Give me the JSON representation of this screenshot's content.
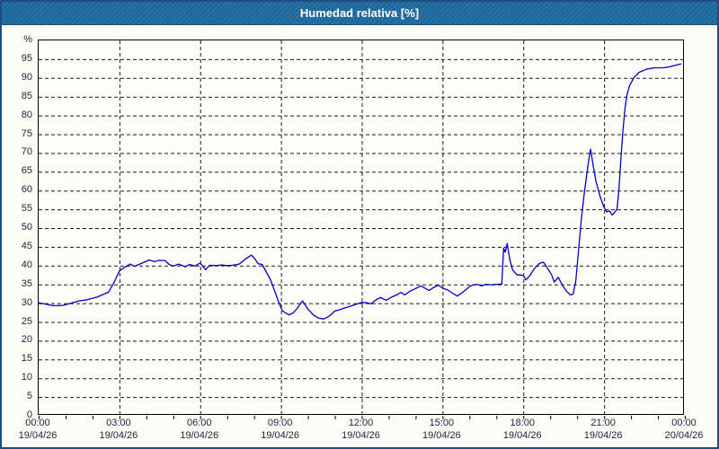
{
  "title": "Humedad relativa [%]",
  "colors": {
    "titlebar_bg": "#1F699E",
    "window_border": "#1D4E7E",
    "background": "#FBFCF4",
    "plot_background": "#FDFEF8",
    "grid": "#1A1A1A",
    "axis": "#000000",
    "tick_label": "#1A2640",
    "line": "#0000C8"
  },
  "y_axis": {
    "unit": "%",
    "ticks": [
      95,
      90,
      85,
      80,
      75,
      70,
      65,
      60,
      55,
      50,
      45,
      40,
      35,
      30,
      25,
      20,
      15,
      10,
      5,
      0
    ]
  },
  "x_axis": {
    "ticks": [
      {
        "hour": 0,
        "time": "00:00",
        "date": "19/04/26"
      },
      {
        "hour": 3,
        "time": "03:00",
        "date": "19/04/26"
      },
      {
        "hour": 6,
        "time": "06:00",
        "date": "19/04/26"
      },
      {
        "hour": 9,
        "time": "09:00",
        "date": "19/04/26"
      },
      {
        "hour": 12,
        "time": "12:00",
        "date": "19/04/26"
      },
      {
        "hour": 15,
        "time": "15:00",
        "date": "19/04/26"
      },
      {
        "hour": 18,
        "time": "18:00",
        "date": "19/04/26"
      },
      {
        "hour": 21,
        "time": "21:00",
        "date": "19/04/26"
      },
      {
        "hour": 24,
        "time": "00:00",
        "date": "20/04/26"
      }
    ],
    "minor_tick_every_hours": 1
  },
  "chart_data": {
    "type": "line",
    "title": "Humedad relativa [%]",
    "ylabel": "%",
    "ylim": [
      0,
      100
    ],
    "xlim_hours": [
      0,
      24
    ],
    "grid": "dashed, every 5 % horizontal, every 3 h vertical",
    "legend_position": "none",
    "series": [
      {
        "name": "Humedad relativa",
        "color": "#0000C8",
        "points_time_hours_vs_percent": [
          [
            0.0,
            30.1
          ],
          [
            0.3,
            29.7
          ],
          [
            0.55,
            29.3
          ],
          [
            0.9,
            29.4
          ],
          [
            1.2,
            30.0
          ],
          [
            1.5,
            30.6
          ],
          [
            1.8,
            30.9
          ],
          [
            2.2,
            31.7
          ],
          [
            2.6,
            33.0
          ],
          [
            2.8,
            35.5
          ],
          [
            3.0,
            38.6
          ],
          [
            3.2,
            39.6
          ],
          [
            3.4,
            40.4
          ],
          [
            3.55,
            39.8
          ],
          [
            3.75,
            40.4
          ],
          [
            3.95,
            41.0
          ],
          [
            4.1,
            41.5
          ],
          [
            4.3,
            41.1
          ],
          [
            4.5,
            41.4
          ],
          [
            4.7,
            41.3
          ],
          [
            4.85,
            40.3
          ],
          [
            5.0,
            39.9
          ],
          [
            5.2,
            40.4
          ],
          [
            5.45,
            39.7
          ],
          [
            5.6,
            40.3
          ],
          [
            5.8,
            39.9
          ],
          [
            6.0,
            40.7
          ],
          [
            6.2,
            38.9
          ],
          [
            6.35,
            40.1
          ],
          [
            6.6,
            40.0
          ],
          [
            6.8,
            40.2
          ],
          [
            7.0,
            40.0
          ],
          [
            7.2,
            40.1
          ],
          [
            7.45,
            40.4
          ],
          [
            7.65,
            41.6
          ],
          [
            7.9,
            42.8
          ],
          [
            8.05,
            41.6
          ],
          [
            8.15,
            40.5
          ],
          [
            8.3,
            40.3
          ],
          [
            8.45,
            38.4
          ],
          [
            8.6,
            36.4
          ],
          [
            8.75,
            33.6
          ],
          [
            8.9,
            30.6
          ],
          [
            9.05,
            28.0
          ],
          [
            9.15,
            27.5
          ],
          [
            9.3,
            26.9
          ],
          [
            9.45,
            27.4
          ],
          [
            9.6,
            28.6
          ],
          [
            9.8,
            30.6
          ],
          [
            10.0,
            28.4
          ],
          [
            10.2,
            26.9
          ],
          [
            10.4,
            26.0
          ],
          [
            10.6,
            25.8
          ],
          [
            10.8,
            26.6
          ],
          [
            11.0,
            27.9
          ],
          [
            11.2,
            28.3
          ],
          [
            11.45,
            28.9
          ],
          [
            11.7,
            29.5
          ],
          [
            12.0,
            30.2
          ],
          [
            12.2,
            30.1
          ],
          [
            12.35,
            29.8
          ],
          [
            12.55,
            31.0
          ],
          [
            12.7,
            31.5
          ],
          [
            12.9,
            30.8
          ],
          [
            13.1,
            31.6
          ],
          [
            13.3,
            32.2
          ],
          [
            13.45,
            32.9
          ],
          [
            13.6,
            32.2
          ],
          [
            13.8,
            33.2
          ],
          [
            14.0,
            33.9
          ],
          [
            14.2,
            34.6
          ],
          [
            14.5,
            33.4
          ],
          [
            14.7,
            34.3
          ],
          [
            14.85,
            34.8
          ],
          [
            15.0,
            34.0
          ],
          [
            15.2,
            33.5
          ],
          [
            15.4,
            32.5
          ],
          [
            15.55,
            31.9
          ],
          [
            15.75,
            32.9
          ],
          [
            16.0,
            34.4
          ],
          [
            16.15,
            34.9
          ],
          [
            16.3,
            35.0
          ],
          [
            16.45,
            34.6
          ],
          [
            16.6,
            35.0
          ],
          [
            16.8,
            34.9
          ],
          [
            17.0,
            35.0
          ],
          [
            17.2,
            35.1
          ],
          [
            17.27,
            44.7
          ],
          [
            17.33,
            43.6
          ],
          [
            17.4,
            45.9
          ],
          [
            17.5,
            41.5
          ],
          [
            17.6,
            38.9
          ],
          [
            17.75,
            37.6
          ],
          [
            17.9,
            37.5
          ],
          [
            18.0,
            37.4
          ],
          [
            18.1,
            36.2
          ],
          [
            18.25,
            37.4
          ],
          [
            18.4,
            39.1
          ],
          [
            18.6,
            40.6
          ],
          [
            18.75,
            40.9
          ],
          [
            18.9,
            39.3
          ],
          [
            19.05,
            37.6
          ],
          [
            19.15,
            35.6
          ],
          [
            19.3,
            36.9
          ],
          [
            19.45,
            34.8
          ],
          [
            19.6,
            33.2
          ],
          [
            19.75,
            32.2
          ],
          [
            19.85,
            32.4
          ],
          [
            19.95,
            36.0
          ],
          [
            20.05,
            44.0
          ],
          [
            20.15,
            52.0
          ],
          [
            20.25,
            58.5
          ],
          [
            20.35,
            64.0
          ],
          [
            20.45,
            69.0
          ],
          [
            20.5,
            71.0
          ],
          [
            20.6,
            66.5
          ],
          [
            20.7,
            62.5
          ],
          [
            20.85,
            58.5
          ],
          [
            21.0,
            55.5
          ],
          [
            21.1,
            54.3
          ],
          [
            21.2,
            54.6
          ],
          [
            21.3,
            53.5
          ],
          [
            21.4,
            54.2
          ],
          [
            21.48,
            55.0
          ],
          [
            21.55,
            60.0
          ],
          [
            21.62,
            68.0
          ],
          [
            21.7,
            76.0
          ],
          [
            21.78,
            82.0
          ],
          [
            21.85,
            85.5
          ],
          [
            21.95,
            88.0
          ],
          [
            22.1,
            90.0
          ],
          [
            22.3,
            91.5
          ],
          [
            22.6,
            92.4
          ],
          [
            22.9,
            92.7
          ],
          [
            23.2,
            92.7
          ],
          [
            23.45,
            93.0
          ],
          [
            23.6,
            93.3
          ],
          [
            23.85,
            93.7
          ]
        ]
      }
    ]
  }
}
